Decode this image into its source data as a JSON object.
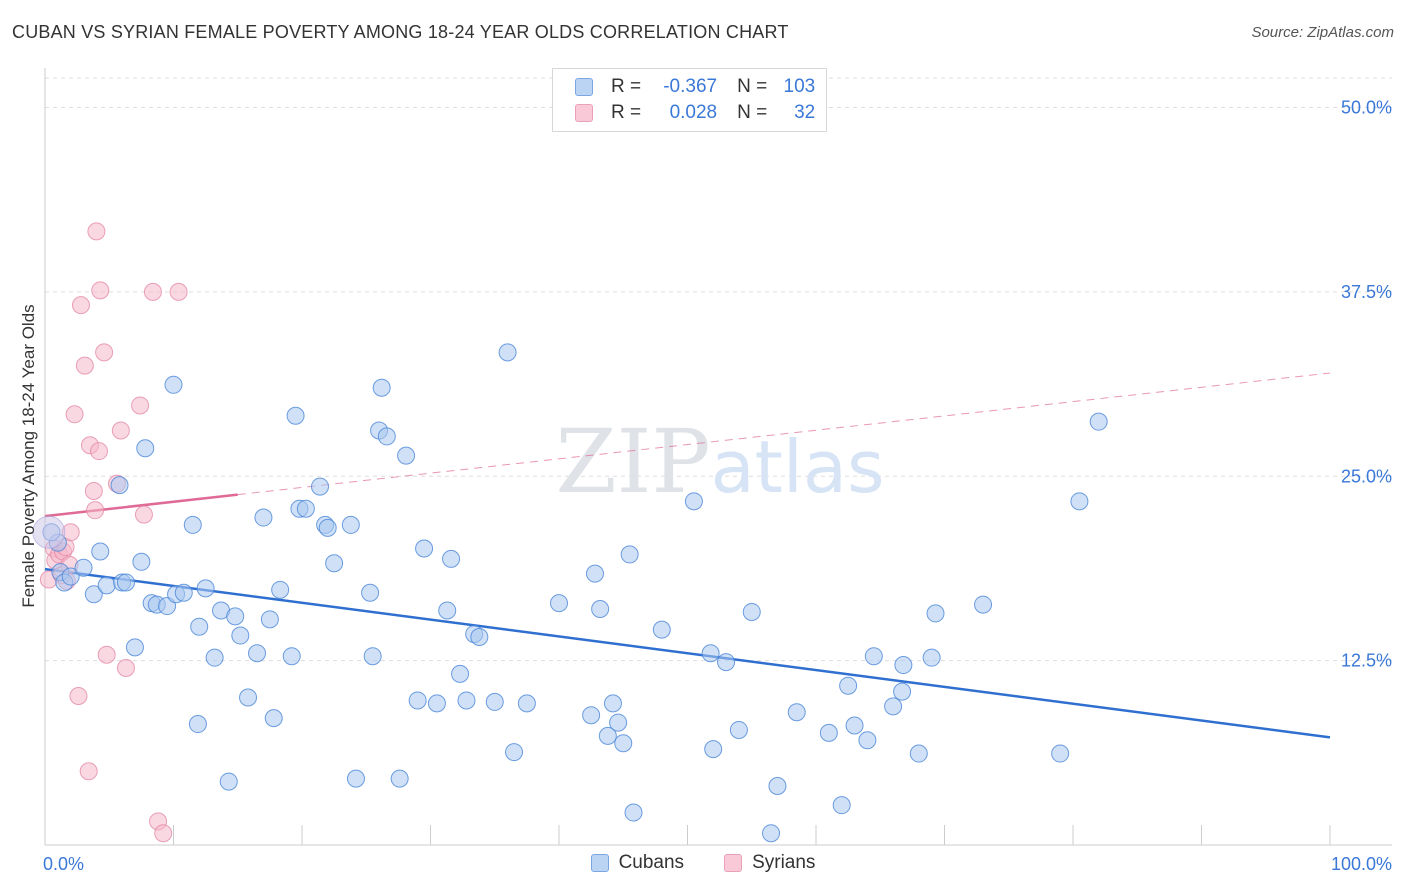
{
  "title": "CUBAN VS SYRIAN FEMALE POVERTY AMONG 18-24 YEAR OLDS CORRELATION CHART",
  "source": "Source: ZipAtlas.com",
  "legend": {
    "rows": [
      {
        "r_label": "R =",
        "r_value": "-0.367",
        "n_label": "N =",
        "n_value": "103"
      },
      {
        "r_label": "R =",
        "r_value": "0.028",
        "n_label": "N =",
        "n_value": "32"
      }
    ]
  },
  "colors": {
    "cubans_fill": "#a9c8f0",
    "cubans_stroke": "#4a86d8",
    "cubans_line": "#2f6fd0",
    "syrians_fill": "#f6b8cb",
    "syrians_stroke": "#e48aa8",
    "syrians_line": "#e06a96",
    "tick_label": "#3a78d8",
    "grid": "#dddddd"
  },
  "chart_data": {
    "type": "scatter",
    "ylabel": "Female Poverty Among 18-24 Year Olds",
    "xlabel": "",
    "xlim": [
      0,
      100
    ],
    "ylim": [
      0,
      52
    ],
    "x_tick_labels": [
      "0.0%",
      "100.0%"
    ],
    "y_ticks": [
      12.5,
      25.0,
      37.5,
      50.0
    ],
    "y_tick_labels": [
      "12.5%",
      "25.0%",
      "37.5%",
      "50.0%"
    ],
    "grid": true,
    "legend_position": "bottom",
    "watermark": "ZIPatlas",
    "series": [
      {
        "name": "Cubans",
        "points": [
          [
            1.0,
            20.5
          ],
          [
            1.2,
            18.5
          ],
          [
            1.5,
            17.8
          ],
          [
            2.0,
            18.2
          ],
          [
            3.0,
            18.8
          ],
          [
            3.8,
            17.0
          ],
          [
            4.3,
            19.9
          ],
          [
            4.8,
            17.6
          ],
          [
            5.8,
            24.4
          ],
          [
            6.0,
            17.8
          ],
          [
            6.3,
            17.8
          ],
          [
            7.0,
            13.4
          ],
          [
            7.5,
            19.2
          ],
          [
            7.8,
            26.9
          ],
          [
            8.3,
            16.4
          ],
          [
            8.7,
            16.3
          ],
          [
            9.5,
            16.2
          ],
          [
            10.0,
            31.2
          ],
          [
            10.2,
            17.0
          ],
          [
            10.8,
            17.1
          ],
          [
            11.5,
            21.7
          ],
          [
            11.9,
            8.2
          ],
          [
            12.0,
            14.8
          ],
          [
            12.5,
            17.4
          ],
          [
            13.2,
            12.7
          ],
          [
            13.7,
            15.9
          ],
          [
            14.3,
            4.3
          ],
          [
            14.8,
            15.5
          ],
          [
            15.2,
            14.2
          ],
          [
            15.8,
            10.0
          ],
          [
            16.5,
            13.0
          ],
          [
            17.0,
            22.2
          ],
          [
            17.5,
            15.3
          ],
          [
            17.8,
            8.6
          ],
          [
            18.3,
            17.3
          ],
          [
            19.2,
            12.8
          ],
          [
            19.5,
            29.1
          ],
          [
            19.8,
            22.8
          ],
          [
            20.3,
            22.8
          ],
          [
            21.4,
            24.3
          ],
          [
            21.8,
            21.7
          ],
          [
            22.0,
            21.5
          ],
          [
            22.5,
            19.1
          ],
          [
            23.8,
            21.7
          ],
          [
            24.2,
            4.5
          ],
          [
            25.3,
            17.1
          ],
          [
            25.5,
            12.8
          ],
          [
            26.0,
            28.1
          ],
          [
            26.2,
            31.0
          ],
          [
            26.6,
            27.7
          ],
          [
            27.6,
            4.5
          ],
          [
            28.1,
            26.4
          ],
          [
            29.0,
            9.8
          ],
          [
            29.5,
            20.1
          ],
          [
            30.5,
            9.6
          ],
          [
            31.3,
            15.9
          ],
          [
            31.6,
            19.4
          ],
          [
            32.3,
            11.6
          ],
          [
            32.8,
            9.8
          ],
          [
            33.4,
            14.3
          ],
          [
            33.8,
            14.1
          ],
          [
            35.0,
            9.7
          ],
          [
            36.0,
            33.4
          ],
          [
            36.5,
            6.3
          ],
          [
            37.5,
            9.6
          ],
          [
            40.0,
            16.4
          ],
          [
            42.5,
            8.8
          ],
          [
            42.8,
            18.4
          ],
          [
            43.2,
            16.0
          ],
          [
            43.8,
            7.4
          ],
          [
            44.2,
            9.6
          ],
          [
            44.6,
            8.3
          ],
          [
            45.0,
            6.9
          ],
          [
            45.5,
            19.7
          ],
          [
            45.8,
            2.2
          ],
          [
            48.0,
            14.6
          ],
          [
            50.5,
            23.3
          ],
          [
            51.8,
            13.0
          ],
          [
            52.0,
            6.5
          ],
          [
            53.0,
            12.4
          ],
          [
            54.0,
            7.8
          ],
          [
            55.0,
            15.8
          ],
          [
            56.5,
            0.8
          ],
          [
            57.0,
            4.0
          ],
          [
            58.5,
            9.0
          ],
          [
            61.0,
            7.6
          ],
          [
            62.0,
            2.7
          ],
          [
            62.5,
            10.8
          ],
          [
            63.0,
            8.1
          ],
          [
            64.0,
            7.1
          ],
          [
            64.5,
            12.8
          ],
          [
            66.0,
            9.4
          ],
          [
            66.7,
            10.4
          ],
          [
            66.8,
            12.2
          ],
          [
            68.0,
            6.2
          ],
          [
            69.0,
            12.7
          ],
          [
            69.3,
            15.7
          ],
          [
            73.0,
            16.3
          ],
          [
            79.0,
            6.2
          ],
          [
            80.5,
            23.3
          ],
          [
            82.0,
            28.7
          ],
          [
            0.5,
            21.2
          ]
        ],
        "trend": {
          "x": [
            0,
            100
          ],
          "y": [
            18.7,
            7.3
          ]
        }
      },
      {
        "name": "Syrians",
        "points": [
          [
            0.3,
            18.0
          ],
          [
            0.7,
            20.1
          ],
          [
            0.8,
            19.3
          ],
          [
            1.1,
            19.7
          ],
          [
            1.3,
            18.3
          ],
          [
            1.4,
            19.9
          ],
          [
            1.6,
            20.2
          ],
          [
            1.7,
            17.9
          ],
          [
            2.0,
            21.2
          ],
          [
            2.3,
            29.2
          ],
          [
            2.6,
            10.1
          ],
          [
            2.8,
            36.6
          ],
          [
            3.1,
            32.5
          ],
          [
            3.4,
            5.0
          ],
          [
            3.5,
            27.1
          ],
          [
            3.8,
            24.0
          ],
          [
            3.9,
            22.7
          ],
          [
            4.0,
            41.6
          ],
          [
            4.2,
            26.7
          ],
          [
            4.3,
            37.6
          ],
          [
            4.6,
            33.4
          ],
          [
            4.8,
            12.9
          ],
          [
            5.6,
            24.5
          ],
          [
            5.9,
            28.1
          ],
          [
            6.3,
            12.0
          ],
          [
            7.4,
            29.8
          ],
          [
            7.7,
            22.4
          ],
          [
            8.4,
            37.5
          ],
          [
            8.8,
            1.6
          ],
          [
            9.2,
            0.8
          ],
          [
            10.4,
            37.5
          ],
          [
            1.9,
            19.0
          ]
        ],
        "trend": {
          "x": [
            0,
            100
          ],
          "y": [
            22.3,
            32.0
          ]
        },
        "trend_solid_until_x": 15
      }
    ]
  },
  "bottom_legend": [
    {
      "label": "Cubans"
    },
    {
      "label": "Syrians"
    }
  ]
}
